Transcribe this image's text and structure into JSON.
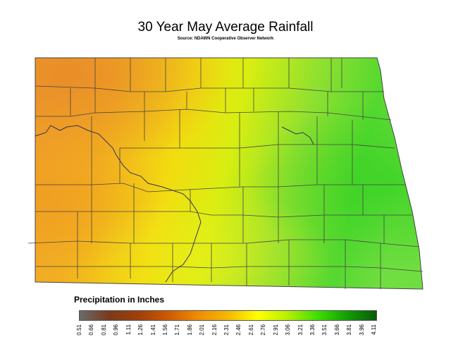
{
  "map": {
    "title": "30 Year May Average Rainfall",
    "source": "Source: NDAWN Cooperative Observer Network"
  },
  "legend": {
    "title": "Precipitation in Inches",
    "ticks": [
      "0.51",
      "0.66",
      "0.81",
      "0.96",
      "1.11",
      "1.26",
      "1.41",
      "1.56",
      "1.71",
      "1.86",
      "2.01",
      "2.16",
      "2.31",
      "2.46",
      "2.61",
      "2.76",
      "2.91",
      "3.06",
      "3.21",
      "3.36",
      "3.51",
      "3.66",
      "3.81",
      "3.96",
      "4.11"
    ],
    "colors": [
      "#6b6b6b",
      "#7a3a1a",
      "#a0400a",
      "#d05a00",
      "#f08c00",
      "#f5b800",
      "#ffff00",
      "#b8f000",
      "#40e000",
      "#10a000",
      "#0a5a0a"
    ]
  },
  "colors": {
    "dry": "#f2a020",
    "mid": "#f5e600",
    "wet": "#50d020",
    "county_line": "#444444",
    "river": "#333355"
  }
}
